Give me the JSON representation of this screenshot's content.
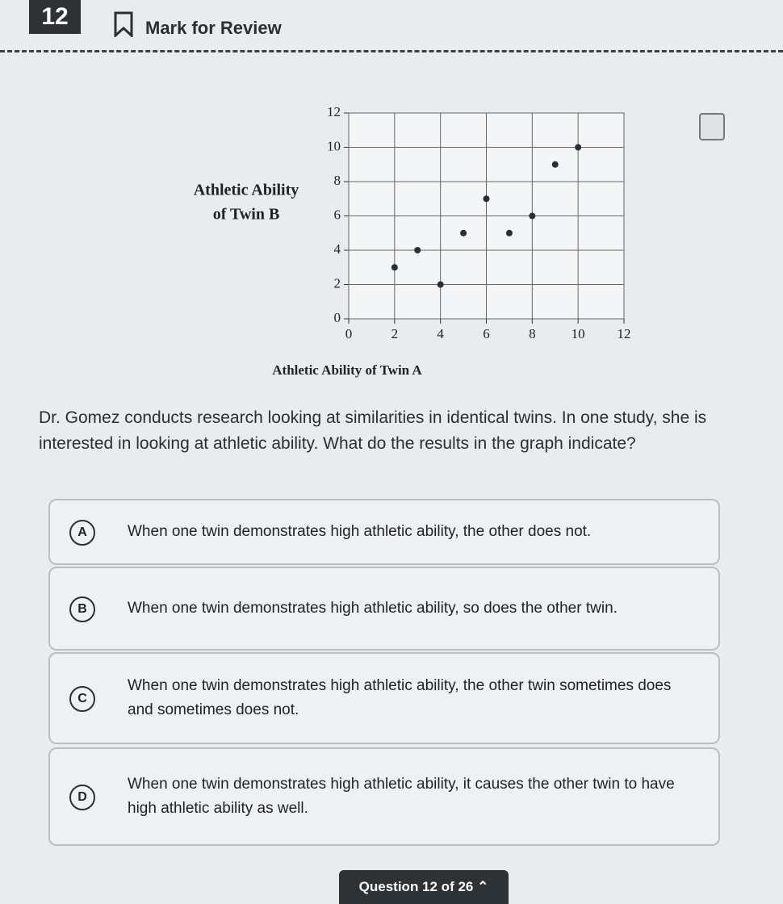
{
  "header": {
    "question_number": "12",
    "mark_for_review": "Mark for Review"
  },
  "chart_data": {
    "type": "scatter",
    "xlabel": "Athletic Ability of Twin A",
    "ylabel": [
      "Athletic Ability",
      "of Twin B"
    ],
    "x": [
      2,
      3,
      4,
      5,
      6,
      7,
      8,
      9,
      10
    ],
    "values": [
      3,
      4,
      2,
      5,
      7,
      5,
      6,
      9,
      10
    ],
    "color": "#2b2f33",
    "xlim": [
      0,
      12
    ],
    "ylim": [
      0,
      12
    ],
    "xticks": [
      0,
      2,
      4,
      6,
      8,
      10,
      12
    ],
    "yticks": [
      0,
      2,
      4,
      6,
      8,
      10,
      12
    ],
    "grid": true
  },
  "question": "Dr. Gomez conducts research looking at similarities in identical twins. In one study, she is interested in looking at athletic ability. What do the results in the graph indicate?",
  "options": [
    {
      "letter": "A",
      "text": "When one twin demonstrates high athletic ability, the other does not."
    },
    {
      "letter": "B",
      "text": "When one twin demonstrates high athletic ability, so does the other twin."
    },
    {
      "letter": "C",
      "text": "When one twin demonstrates high athletic ability, the other twin sometimes does and sometimes does not."
    },
    {
      "letter": "D",
      "text": "When one twin demonstrates high athletic ability, it causes the other twin to have high athletic ability as well."
    }
  ],
  "footer": "Question 12 of 26"
}
